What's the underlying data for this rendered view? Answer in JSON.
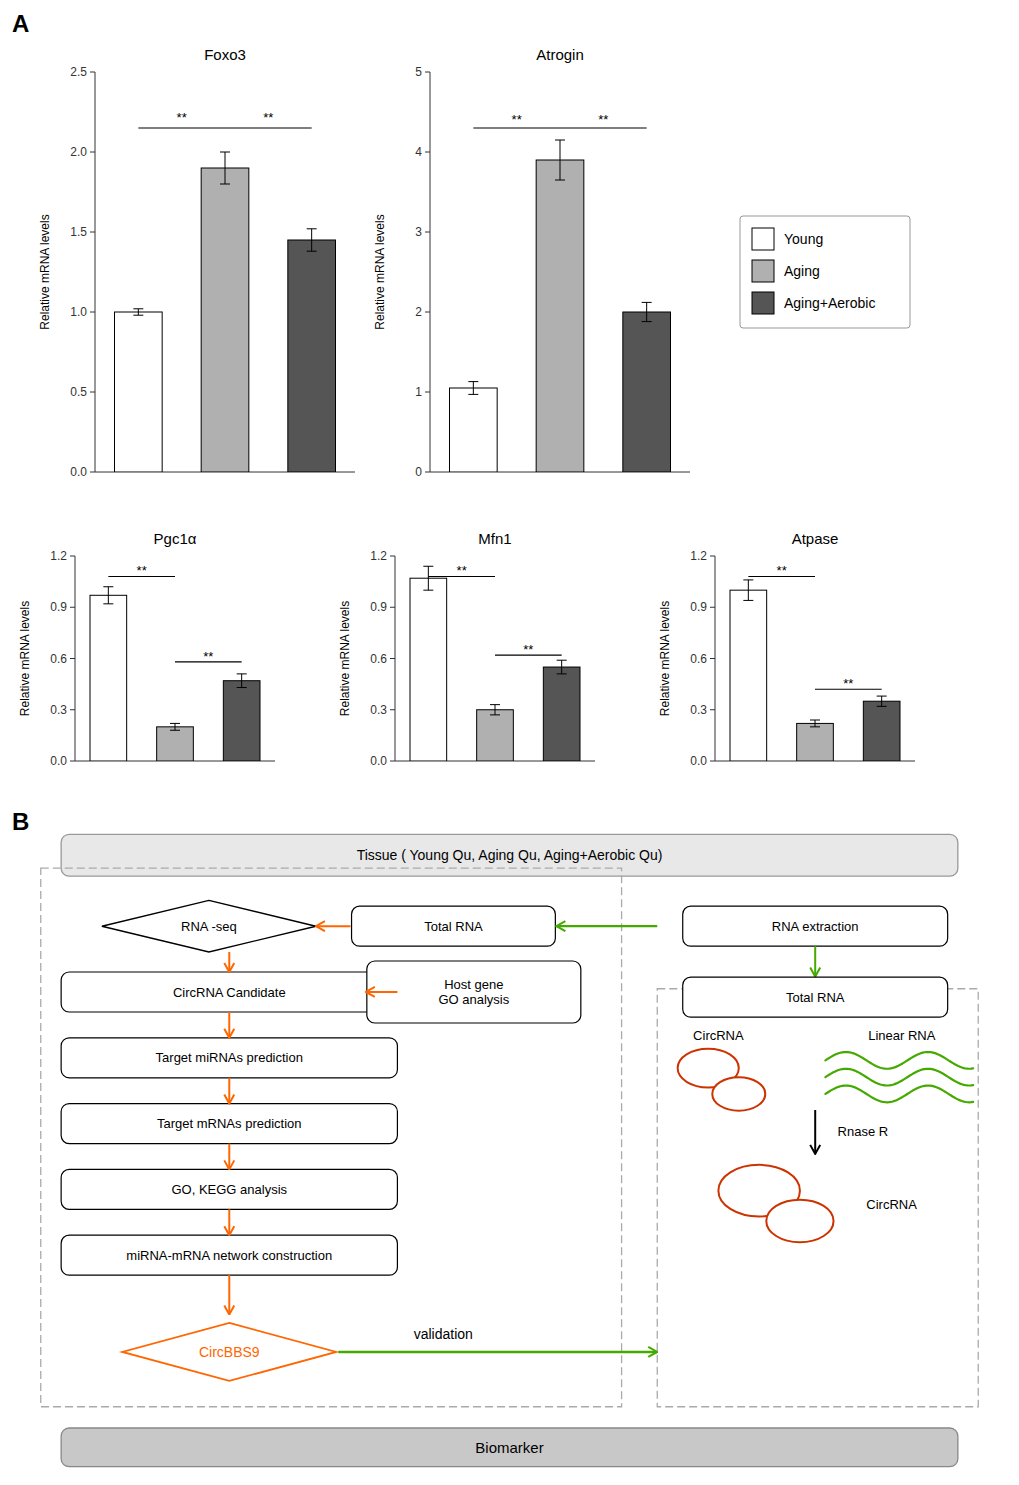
{
  "chart_data": [
    {
      "type": "bar",
      "title": "Foxo3",
      "ylabel": "Relative mRNA levels",
      "categories": [
        "Young",
        "Aging",
        "Aging+Aerobic"
      ],
      "colors": [
        "white",
        "#b0b0b0",
        "#555555"
      ],
      "values": [
        1.0,
        1.9,
        1.45
      ],
      "errors": [
        0.02,
        0.1,
        0.07
      ],
      "ylim": [
        0.0,
        2.5
      ],
      "yticks": [
        {
          "value": 0,
          "label": "0.0"
        },
        0.5,
        {
          "value": 1,
          "label": "1.0"
        },
        1.5,
        {
          "value": 2,
          "label": "2.0"
        },
        2.5
      ],
      "tick_labels": "y",
      "grid": false,
      "annotations": [
        {
          "text": "**",
          "from": "Young",
          "to": "Aging",
          "y": 2.15,
          "text_y": 2.2
        },
        {
          "text": "**",
          "from": "Aging",
          "to": "Aging+Aerobic",
          "y": 2.15,
          "text_y": 2.2
        }
      ]
    },
    {
      "type": "bar",
      "title": "Atrogin",
      "ylabel": "Relative mRNA levels",
      "categories": [
        "Young",
        "Aging",
        "Aging+Aerobic"
      ],
      "colors": [
        "white",
        "#b0b0b0",
        "#555555"
      ],
      "values": [
        1.05,
        3.9,
        2.0
      ],
      "errors": [
        0.08,
        0.25,
        0.12
      ],
      "ylim": [
        0.0,
        5.0
      ],
      "yticks": [
        0,
        1,
        2,
        3,
        4,
        5
      ],
      "tick_labels": "y",
      "grid": false,
      "legend": "right",
      "annotations": [
        {
          "text": "**",
          "from": "Young",
          "to": "Aging",
          "y": 4.3,
          "text_y": 4.38
        },
        {
          "text": "**",
          "from": "Aging",
          "to": "Aging+Aerobic",
          "y": 4.3,
          "text_y": 4.38
        }
      ]
    },
    {
      "type": "bar",
      "title": "Pgc1α",
      "ylabel": "Relative mRNA levels",
      "categories": [
        "Young",
        "Aging",
        "Aging+Aerobic"
      ],
      "colors": [
        "white",
        "#b0b0b0",
        "#555555"
      ],
      "values": [
        0.97,
        0.2,
        0.47
      ],
      "errors": [
        0.05,
        0.02,
        0.04
      ],
      "ylim": [
        0.0,
        1.2
      ],
      "yticks": [
        {
          "value": 0,
          "label": "0.0"
        },
        0.3,
        0.6,
        0.9,
        1.2
      ],
      "tick_labels": "y",
      "grid": false,
      "annotations": [
        {
          "text": "**",
          "from": "Young",
          "to": "Aging",
          "y": 1.08,
          "text_y": 1.1
        },
        {
          "text": "**",
          "from": "Aging",
          "to": "Aging+Aerobic",
          "y": 0.58,
          "text_y": 0.6
        }
      ]
    },
    {
      "type": "bar",
      "title": "Mfn1",
      "ylabel": "Relative mRNA levels",
      "categories": [
        "Young",
        "Aging",
        "Aging+Aerobic"
      ],
      "colors": [
        "white",
        "#b0b0b0",
        "#555555"
      ],
      "values": [
        1.07,
        0.3,
        0.55
      ],
      "errors": [
        0.07,
        0.03,
        0.04
      ],
      "ylim": [
        0.0,
        1.2
      ],
      "yticks": [
        {
          "value": 0,
          "label": "0.0"
        },
        0.3,
        0.6,
        0.9,
        1.2
      ],
      "tick_labels": "y",
      "grid": false,
      "annotations": [
        {
          "text": "**",
          "from": "Young",
          "to": "Aging",
          "y": 1.08,
          "text_y": 1.1
        },
        {
          "text": "**",
          "from": "Aging",
          "to": "Aging+Aerobic",
          "y": 0.62,
          "text_y": 0.64
        }
      ]
    },
    {
      "type": "bar",
      "title": "Atpase",
      "ylabel": "Relative mRNA levels",
      "categories": [
        "Young",
        "Aging",
        "Aging+Aerobic"
      ],
      "colors": [
        "white",
        "#b0b0b0",
        "#555555"
      ],
      "values": [
        1.0,
        0.22,
        0.35
      ],
      "errors": [
        0.06,
        0.02,
        0.03
      ],
      "ylim": [
        0.0,
        1.2
      ],
      "yticks": [
        {
          "value": 0,
          "label": "0.0"
        },
        0.3,
        0.6,
        0.9,
        1.2
      ],
      "tick_labels": "y",
      "grid": false,
      "annotations": [
        {
          "text": "**",
          "from": "Young",
          "to": "Aging",
          "y": 1.08,
          "text_y": 1.1
        },
        {
          "text": "**",
          "from": "Aging",
          "to": "Aging+Aerobic",
          "y": 0.42,
          "text_y": 0.44
        }
      ]
    },
    {
      "type": "diagram",
      "colors": [
        "#FF6600",
        "#44AA00",
        "#000000",
        "#CC3300"
      ],
      "annotations": [
        "A",
        "B",
        "Tissue ( Young Qu, Aging Qu, Aging+Aerobic Qu)",
        "Biomarker",
        "Total RNA",
        "RNA -seq",
        "CircRNA Candidate",
        "Host gene\nGO analysis",
        "Target miRNAs prediction",
        "Target mRNAs prediction",
        "GO, KEGG analysis",
        "miRNA-mRNA network construction",
        "CircBBS9",
        "validation",
        "RNA extraction",
        "Total RNA",
        "CircRNA",
        "Linear RNA",
        "Rnase R",
        "CircRNA"
      ]
    }
  ]
}
